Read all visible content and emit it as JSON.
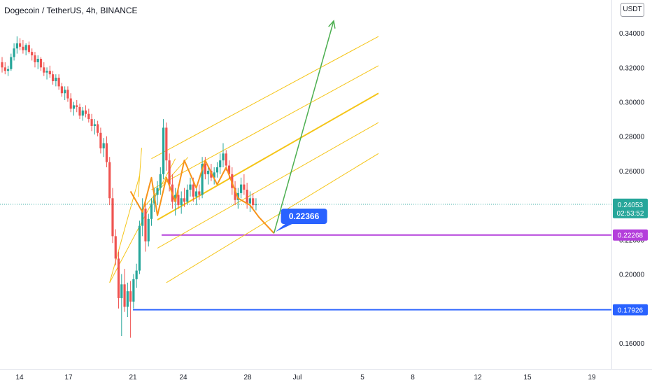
{
  "header": {
    "title": "Dogecoin / TetherUS, 4h, BINANCE",
    "currency": "USDT"
  },
  "colors": {
    "up": "#26a69a",
    "down": "#ef5350",
    "pitchfork": "#f5c518",
    "pattern": "#f7931a",
    "arrow": "#4caf50",
    "support": "#2962ff",
    "resistance": "#b43fdb",
    "callout": "#2962ff",
    "last": "#26a69a",
    "axis_text": "#131722"
  },
  "chart_data": {
    "type": "candlestick",
    "symbol": "DOGEUSDT",
    "timeframe": "4h",
    "exchange": "BINANCE",
    "y_axis": {
      "ticks": [
        0.34,
        0.32,
        0.3,
        0.28,
        0.26,
        0.24,
        0.22,
        0.2,
        0.18,
        0.16
      ],
      "tick_labels": [
        "0.34000",
        "0.32000",
        "0.30000",
        "0.28000",
        "0.26000",
        "0.24000",
        "0.22000",
        "0.20000",
        "0.18000",
        "0.16000"
      ]
    },
    "x_axis": {
      "tick_labels": [
        "14",
        "17",
        "21",
        "24",
        "28",
        "Jul",
        "5",
        "8",
        "12",
        "15",
        "19"
      ]
    },
    "candles": [
      [
        0.323,
        0.326,
        0.317,
        0.32
      ],
      [
        0.32,
        0.323,
        0.316,
        0.318
      ],
      [
        0.318,
        0.321,
        0.315,
        0.319
      ],
      [
        0.319,
        0.328,
        0.318,
        0.326
      ],
      [
        0.326,
        0.334,
        0.324,
        0.331
      ],
      [
        0.331,
        0.338,
        0.328,
        0.334
      ],
      [
        0.334,
        0.337,
        0.33,
        0.332
      ],
      [
        0.332,
        0.336,
        0.328,
        0.33
      ],
      [
        0.33,
        0.334,
        0.327,
        0.333
      ],
      [
        0.333,
        0.335,
        0.328,
        0.329
      ],
      [
        0.329,
        0.331,
        0.324,
        0.327
      ],
      [
        0.327,
        0.329,
        0.32,
        0.323
      ],
      [
        0.323,
        0.327,
        0.319,
        0.325
      ],
      [
        0.325,
        0.326,
        0.318,
        0.32
      ],
      [
        0.32,
        0.323,
        0.315,
        0.317
      ],
      [
        0.317,
        0.32,
        0.313,
        0.318
      ],
      [
        0.318,
        0.321,
        0.314,
        0.316
      ],
      [
        0.316,
        0.318,
        0.31,
        0.312
      ],
      [
        0.312,
        0.316,
        0.309,
        0.314
      ],
      [
        0.314,
        0.316,
        0.307,
        0.309
      ],
      [
        0.309,
        0.311,
        0.303,
        0.305
      ],
      [
        0.305,
        0.309,
        0.301,
        0.307
      ],
      [
        0.307,
        0.309,
        0.3,
        0.302
      ],
      [
        0.302,
        0.305,
        0.294,
        0.296
      ],
      [
        0.296,
        0.3,
        0.292,
        0.298
      ],
      [
        0.298,
        0.301,
        0.294,
        0.297
      ],
      [
        0.297,
        0.299,
        0.29,
        0.292
      ],
      [
        0.292,
        0.297,
        0.289,
        0.295
      ],
      [
        0.295,
        0.298,
        0.291,
        0.293
      ],
      [
        0.293,
        0.296,
        0.288,
        0.29
      ],
      [
        0.29,
        0.293,
        0.283,
        0.286
      ],
      [
        0.286,
        0.29,
        0.281,
        0.287
      ],
      [
        0.287,
        0.289,
        0.28,
        0.282
      ],
      [
        0.282,
        0.285,
        0.27,
        0.273
      ],
      [
        0.273,
        0.279,
        0.268,
        0.276
      ],
      [
        0.276,
        0.28,
        0.262,
        0.265
      ],
      [
        0.265,
        0.268,
        0.24,
        0.244
      ],
      [
        0.244,
        0.25,
        0.218,
        0.222
      ],
      [
        0.222,
        0.226,
        0.205,
        0.209
      ],
      [
        0.209,
        0.213,
        0.18,
        0.186
      ],
      [
        0.186,
        0.2,
        0.164,
        0.194
      ],
      [
        0.194,
        0.203,
        0.178,
        0.181
      ],
      [
        0.181,
        0.195,
        0.175,
        0.19
      ],
      [
        0.19,
        0.196,
        0.163,
        0.184
      ],
      [
        0.184,
        0.2,
        0.18,
        0.197
      ],
      [
        0.197,
        0.206,
        0.192,
        0.202
      ],
      [
        0.202,
        0.231,
        0.2,
        0.228
      ],
      [
        0.228,
        0.244,
        0.222,
        0.238
      ],
      [
        0.238,
        0.243,
        0.213,
        0.219
      ],
      [
        0.219,
        0.235,
        0.216,
        0.232
      ],
      [
        0.232,
        0.244,
        0.228,
        0.241
      ],
      [
        0.241,
        0.25,
        0.236,
        0.246
      ],
      [
        0.246,
        0.254,
        0.24,
        0.25
      ],
      [
        0.25,
        0.262,
        0.246,
        0.258
      ],
      [
        0.258,
        0.29,
        0.255,
        0.285
      ],
      [
        0.285,
        0.288,
        0.26,
        0.266
      ],
      [
        0.266,
        0.27,
        0.248,
        0.252
      ],
      [
        0.252,
        0.258,
        0.238,
        0.242
      ],
      [
        0.242,
        0.25,
        0.234,
        0.246
      ],
      [
        0.246,
        0.252,
        0.238,
        0.24
      ],
      [
        0.24,
        0.248,
        0.235,
        0.244
      ],
      [
        0.244,
        0.25,
        0.239,
        0.242
      ],
      [
        0.242,
        0.252,
        0.24,
        0.249
      ],
      [
        0.249,
        0.256,
        0.245,
        0.252
      ],
      [
        0.252,
        0.256,
        0.242,
        0.245
      ],
      [
        0.245,
        0.25,
        0.24,
        0.248
      ],
      [
        0.248,
        0.252,
        0.243,
        0.246
      ],
      [
        0.246,
        0.268,
        0.244,
        0.264
      ],
      [
        0.264,
        0.268,
        0.255,
        0.258
      ],
      [
        0.258,
        0.262,
        0.252,
        0.26
      ],
      [
        0.26,
        0.264,
        0.254,
        0.256
      ],
      [
        0.256,
        0.262,
        0.252,
        0.259
      ],
      [
        0.259,
        0.265,
        0.256,
        0.262
      ],
      [
        0.262,
        0.27,
        0.258,
        0.266
      ],
      [
        0.266,
        0.276,
        0.262,
        0.27
      ],
      [
        0.27,
        0.272,
        0.26,
        0.263
      ],
      [
        0.263,
        0.266,
        0.255,
        0.258
      ],
      [
        0.258,
        0.262,
        0.246,
        0.25
      ],
      [
        0.25,
        0.254,
        0.24,
        0.243
      ],
      [
        0.243,
        0.25,
        0.238,
        0.247
      ],
      [
        0.247,
        0.256,
        0.244,
        0.252
      ],
      [
        0.252,
        0.258,
        0.246,
        0.249
      ],
      [
        0.249,
        0.253,
        0.238,
        0.241
      ],
      [
        0.241,
        0.248,
        0.236,
        0.244
      ],
      [
        0.244,
        0.247,
        0.238,
        0.24
      ],
      [
        0.24,
        0.244,
        0.237,
        0.2405
      ]
    ],
    "pitchfork": {
      "anchor_a": {
        "i": 46,
        "v": 0.257
      },
      "anchor_b": {
        "i": 36,
        "v": 0.195
      },
      "anchor_c": {
        "i": 58,
        "v": 0.267
      },
      "lines": [
        {
          "start": [
            52,
            0.2315
          ],
          "end": [
            126,
            0.305
          ],
          "weight": "bold"
        },
        {
          "start": [
            50,
            0.267
          ],
          "end": [
            126,
            0.338
          ]
        },
        {
          "start": [
            50,
            0.249
          ],
          "end": [
            126,
            0.321
          ]
        },
        {
          "start": [
            52,
            0.215
          ],
          "end": [
            126,
            0.288
          ]
        },
        {
          "start": [
            55,
            0.195
          ],
          "end": [
            126,
            0.27
          ]
        }
      ]
    },
    "pattern": [
      [
        43,
        0.248
      ],
      [
        47,
        0.236
      ],
      [
        50,
        0.256
      ],
      [
        52,
        0.234
      ],
      [
        55,
        0.256
      ],
      [
        58,
        0.242
      ],
      [
        61,
        0.266
      ],
      [
        65,
        0.25
      ],
      [
        68,
        0.266
      ],
      [
        72,
        0.252
      ],
      [
        75,
        0.262
      ],
      [
        79,
        0.244
      ],
      [
        83,
        0.24
      ],
      [
        86,
        0.233
      ],
      [
        91,
        0.2237
      ]
    ],
    "projection": {
      "from": [
        91,
        0.2237
      ],
      "to": [
        111,
        0.347
      ]
    },
    "callout": {
      "label": "0.22366",
      "value": 0.22366,
      "at_index": 91
    },
    "levels": [
      {
        "name": "support",
        "value": 0.17926,
        "label": "0.17926",
        "color": "#2962ff"
      },
      {
        "name": "resistance",
        "value": 0.22268,
        "label": "0.22268",
        "color": "#b43fdb"
      }
    ],
    "last_price": {
      "value": 0.24053,
      "label": "0.24053",
      "countdown": "02:53:52"
    }
  }
}
